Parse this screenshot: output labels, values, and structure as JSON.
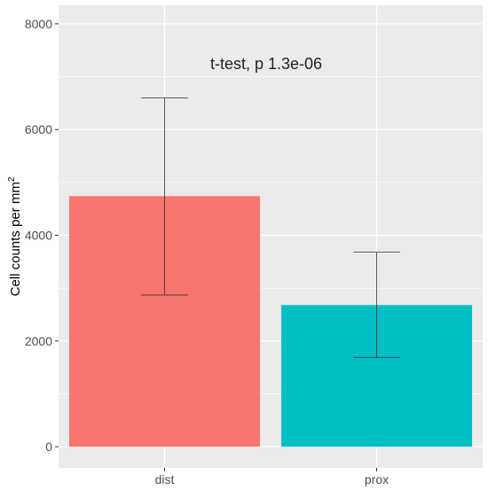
{
  "chart_data": {
    "type": "bar",
    "categories": [
      "dist",
      "prox"
    ],
    "values": [
      4740,
      2680
    ],
    "error_bars": [
      {
        "low": 2870,
        "high": 6600
      },
      {
        "low": 1690,
        "high": 3680
      }
    ],
    "bar_colors": [
      "#F8766D",
      "#00BFC4"
    ],
    "ylabel": "Cell counts per mm",
    "ylabel_superscript": "2",
    "ylim": [
      -400,
      8350
    ],
    "yticks": [
      0,
      2000,
      4000,
      6000,
      8000
    ],
    "ytick_labels": [
      "0",
      "2000",
      "4000",
      "6000",
      "8000"
    ],
    "annotation": "t-test, p 1.3e-06",
    "grid": true,
    "panel_background": "#EBEBEB",
    "grid_color": "#FFFFFF"
  }
}
